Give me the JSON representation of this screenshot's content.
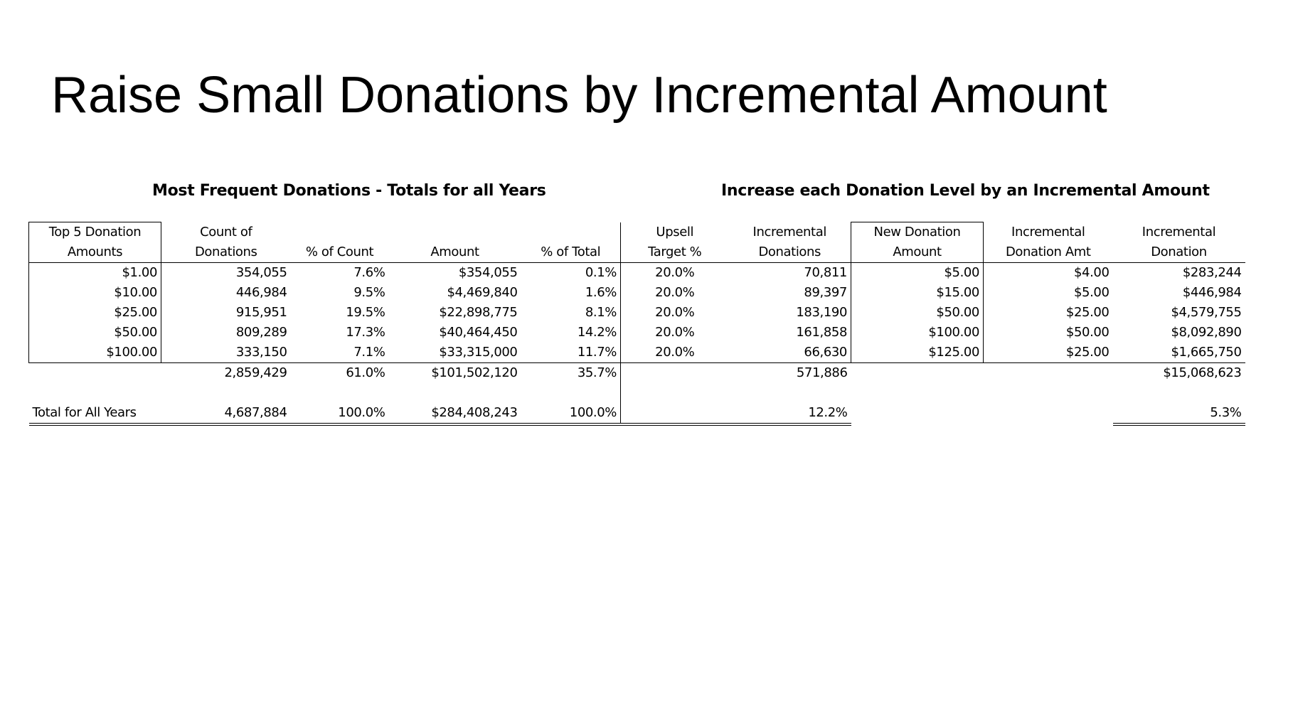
{
  "slide": {
    "title": "Raise Small Donations by Incremental Amount"
  },
  "headings": {
    "left": "Most Frequent Donations - Totals for all Years",
    "right": "Increase each Donation Level by an Incremental Amount"
  },
  "columns": [
    {
      "line1": "Top 5 Donation",
      "line2": "Amounts"
    },
    {
      "line1": "Count of",
      "line2": "Donations"
    },
    {
      "line1": "",
      "line2": "% of Count"
    },
    {
      "line1": "",
      "line2": "Amount"
    },
    {
      "line1": "",
      "line2": "% of Total"
    },
    {
      "line1": "Upsell",
      "line2": "Target %"
    },
    {
      "line1": "Incremental",
      "line2": "Donations"
    },
    {
      "line1": "New Donation",
      "line2": "Amount"
    },
    {
      "line1": "Incremental",
      "line2": "Donation Amt"
    },
    {
      "line1": "Incremental",
      "line2": "Donation"
    }
  ],
  "rows": [
    [
      "$1.00",
      "354,055",
      "7.6%",
      "$354,055",
      "0.1%",
      "20.0%",
      "70,811",
      "$5.00",
      "$4.00",
      "$283,244"
    ],
    [
      "$10.00",
      "446,984",
      "9.5%",
      "$4,469,840",
      "1.6%",
      "20.0%",
      "89,397",
      "$15.00",
      "$5.00",
      "$446,984"
    ],
    [
      "$25.00",
      "915,951",
      "19.5%",
      "$22,898,775",
      "8.1%",
      "20.0%",
      "183,190",
      "$50.00",
      "$25.00",
      "$4,579,755"
    ],
    [
      "$50.00",
      "809,289",
      "17.3%",
      "$40,464,450",
      "14.2%",
      "20.0%",
      "161,858",
      "$100.00",
      "$50.00",
      "$8,092,890"
    ],
    [
      "$100.00",
      "333,150",
      "7.1%",
      "$33,315,000",
      "11.7%",
      "20.0%",
      "66,630",
      "$125.00",
      "$25.00",
      "$1,665,750"
    ]
  ],
  "subtotal": {
    "count": "2,859,429",
    "pct_count": "61.0%",
    "amount": "$101,502,120",
    "pct_total": "35.7%",
    "incremental_donations": "571,886",
    "incremental_donation": "$15,068,623"
  },
  "total": {
    "label": "Total for All Years",
    "count": "4,687,884",
    "pct_count": "100.0%",
    "amount": "$284,408,243",
    "pct_total": "100.0%",
    "incremental_donations_pct": "12.2%",
    "incremental_donation_pct": "5.3%"
  }
}
